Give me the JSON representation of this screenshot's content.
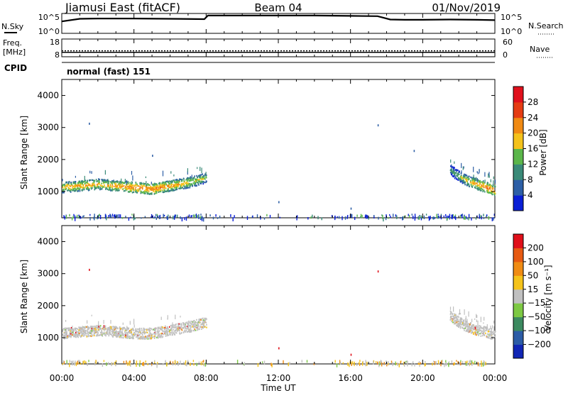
{
  "header": {
    "station": "Jiamusi East (fitACF)",
    "beam": "Beam 04",
    "date": "01/Nov/2019"
  },
  "nsky_panel": {
    "left_label": "N.Sky",
    "left_ticks": [
      "10^5",
      "10^0"
    ],
    "right_ticks": [
      "10^5",
      "10^0"
    ],
    "right_label": "N.Search",
    "type": "line",
    "series": [
      {
        "x": [
          0,
          1,
          2,
          4,
          6,
          7.9,
          8.1,
          10,
          12,
          14,
          16,
          17.5,
          18.2,
          19,
          20,
          21.5,
          23,
          24
        ],
        "values": [
          3.2,
          4.0,
          4.1,
          4.1,
          4.0,
          3.9,
          5.0,
          5.0,
          5.0,
          5.0,
          4.9,
          4.8,
          3.8,
          3.7,
          3.7,
          3.8,
          3.7,
          3.6
        ]
      }
    ]
  },
  "freq_panel": {
    "left_label_top": "Freq.",
    "left_label_unit": "[MHz]",
    "left_ticks": [
      "18",
      "8"
    ],
    "right_ticks": [
      "60",
      "0"
    ],
    "right_label": "Nave",
    "cpid_label": "CPID",
    "freq_value_mhz": 10.5,
    "nave_value": 20
  },
  "cpid_text": "normal (fast) 151",
  "x_axis": {
    "title": "Time UT",
    "range": [
      0,
      24
    ],
    "tick_labels": [
      "00:00",
      "04:00",
      "08:00",
      "12:00",
      "16:00",
      "20:00",
      "00:00"
    ]
  },
  "power_panel": {
    "ylabel": "Slant Range [km]",
    "yticks": [
      "4000",
      "3000",
      "2000",
      "1000"
    ],
    "ylim": [
      180,
      4500
    ],
    "colorbar_label": "Power [dB]",
    "colorbar_ticks": [
      "28",
      "24",
      "20",
      "16",
      "12",
      "8",
      "4"
    ],
    "colors": [
      "#0a1fd6",
      "#2d5fa6",
      "#3a8a78",
      "#5bb64a",
      "#f4c21b",
      "#f08a13",
      "#e53c13",
      "#e0101c"
    ]
  },
  "velocity_panel": {
    "ylabel": "Slant Range [km]",
    "yticks": [
      "4000",
      "3000",
      "2000",
      "1000"
    ],
    "ylim": [
      180,
      4500
    ],
    "colorbar_label": "Velocity [m s⁻¹]",
    "colorbar_ticks": [
      "200",
      "100",
      "50",
      "15",
      "−15",
      "−50",
      "−100",
      "−200"
    ],
    "colors": [
      "#1126b5",
      "#2c5ca6",
      "#3c8a60",
      "#7dc943",
      "#c0c0c0",
      "#f5c31a",
      "#f08c14",
      "#e75a12",
      "#e0101a"
    ]
  },
  "chart_data": [
    {
      "type": "heatmap",
      "title": "Power",
      "xlabel": "Time UT",
      "ylabel": "Slant Range [km]",
      "xlim": [
        0,
        24
      ],
      "ylim": [
        180,
        4500
      ],
      "scatter_bands": [
        {
          "name": "",
          "x": [
            0.0,
            1.0,
            2.0,
            3.0,
            4.0,
            5.0,
            6.0,
            7.0,
            8.0
          ],
          "range_km": [
            1150,
            1200,
            1250,
            1200,
            1150,
            1100,
            1200,
            1300,
            1450
          ],
          "power_db": [
            20,
            22,
            20,
            22,
            24,
            24,
            22,
            20,
            16
          ]
        },
        {
          "name": "",
          "x": [
            21.5,
            22.0,
            22.5,
            23.0,
            23.5,
            24.0
          ],
          "range_km": [
            1700,
            1500,
            1350,
            1250,
            1150,
            1050
          ],
          "power_db": [
            12,
            16,
            20,
            22,
            24,
            24
          ]
        }
      ],
      "near_range_scatter_km": 250,
      "sparse_points": [
        {
          "x": 1.5,
          "range_km": 3150
        },
        {
          "x": 17.5,
          "range_km": 3100
        },
        {
          "x": 5.0,
          "range_km": 2150
        },
        {
          "x": 12.0,
          "range_km": 700
        },
        {
          "x": 16.0,
          "range_km": 500
        },
        {
          "x": 19.5,
          "range_km": 2300
        }
      ]
    },
    {
      "type": "heatmap",
      "title": "Velocity",
      "xlabel": "Time UT",
      "ylabel": "Slant Range [km]",
      "xlim": [
        0,
        24
      ],
      "ylim": [
        180,
        4500
      ],
      "scatter_bands": [
        {
          "name": "",
          "x": [
            0.0,
            1.0,
            2.0,
            3.0,
            4.0,
            5.0,
            6.0,
            7.0,
            8.0
          ],
          "range_km": [
            1150,
            1200,
            1250,
            1200,
            1150,
            1150,
            1250,
            1350,
            1500
          ],
          "velocity_ms": [
            0,
            0,
            0,
            0,
            0,
            0,
            0,
            5,
            10
          ]
        },
        {
          "name": "",
          "x": [
            21.5,
            22.0,
            22.5,
            23.0,
            23.5,
            24.0
          ],
          "range_km": [
            1700,
            1500,
            1350,
            1250,
            1200,
            1100
          ],
          "velocity_ms": [
            -20,
            0,
            0,
            0,
            0,
            0
          ]
        }
      ],
      "near_range_scatter_km": 250,
      "sparse_points": [
        {
          "x": 1.5,
          "range_km": 3150
        },
        {
          "x": 17.5,
          "range_km": 3100
        },
        {
          "x": 12.0,
          "range_km": 700
        },
        {
          "x": 16.0,
          "range_km": 500
        }
      ]
    }
  ]
}
